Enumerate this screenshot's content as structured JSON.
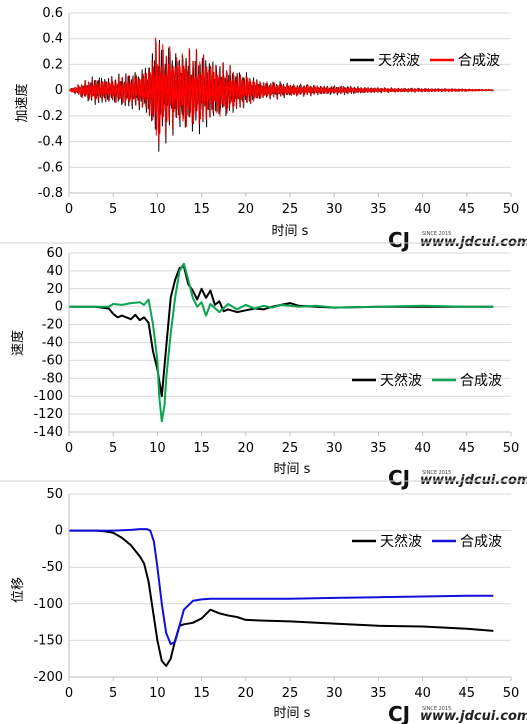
{
  "watermark": {
    "logo": "CJ",
    "since": "SINCE 2015",
    "url": "www.jdcui.com"
  },
  "chart_data": [
    {
      "type": "line",
      "xlabel": "时间 s",
      "ylabel": "加速度",
      "xlim": [
        0,
        50
      ],
      "ylim": [
        -0.8,
        0.6
      ],
      "xticks": [
        0,
        5,
        10,
        15,
        20,
        25,
        30,
        35,
        40,
        45,
        50
      ],
      "yticks": [
        -0.8,
        -0.6,
        -0.4,
        -0.2,
        0,
        0.2,
        0.4,
        0.6
      ],
      "legend_position": "top-right",
      "series": [
        {
          "name": "天然波",
          "color": "#000000",
          "x": [
            0,
            2,
            3,
            5,
            7,
            8,
            9,
            9.5,
            10,
            10.3,
            10.6,
            11,
            12,
            13,
            14,
            15,
            16,
            17,
            18,
            19,
            20,
            22,
            24,
            26,
            28,
            30,
            35,
            40,
            45,
            48
          ],
          "envelope": [
            0.01,
            0.08,
            0.12,
            0.12,
            0.15,
            0.17,
            0.25,
            0.35,
            0.52,
            0.48,
            0.36,
            0.4,
            0.35,
            0.38,
            0.33,
            0.33,
            0.28,
            0.25,
            0.22,
            0.16,
            0.15,
            0.07,
            0.07,
            0.05,
            0.04,
            0.04,
            0.02,
            0.015,
            0.01,
            0.005
          ]
        },
        {
          "name": "合成波",
          "color": "#ff0000",
          "x": [
            0,
            2,
            3,
            5,
            7,
            8,
            9,
            9.5,
            10,
            10.3,
            10.6,
            11,
            12,
            13,
            14,
            15,
            16,
            17,
            18,
            19,
            20,
            22,
            24,
            26,
            28,
            30,
            35,
            40,
            45,
            48
          ],
          "envelope": [
            0.01,
            0.08,
            0.1,
            0.1,
            0.13,
            0.15,
            0.22,
            0.32,
            0.5,
            0.45,
            0.35,
            0.38,
            0.33,
            0.36,
            0.31,
            0.3,
            0.26,
            0.24,
            0.2,
            0.15,
            0.14,
            0.07,
            0.06,
            0.05,
            0.04,
            0.03,
            0.02,
            0.015,
            0.01,
            0.005
          ]
        }
      ]
    },
    {
      "type": "line",
      "xlabel": "时间 s",
      "ylabel": "速度",
      "xlim": [
        0,
        50
      ],
      "ylim": [
        -140,
        60
      ],
      "xticks": [
        0,
        5,
        10,
        15,
        20,
        25,
        30,
        35,
        40,
        45,
        50
      ],
      "yticks": [
        -140,
        -120,
        -100,
        -80,
        -60,
        -40,
        -20,
        0,
        20,
        40,
        60
      ],
      "legend_position": "bottom-right",
      "series": [
        {
          "name": "天然波",
          "color": "#000000",
          "x": [
            0,
            3,
            4.5,
            5,
            5.5,
            6,
            7,
            7.5,
            8,
            8.5,
            9,
            9.5,
            10,
            10.5,
            11,
            11.5,
            12,
            12.5,
            13,
            13.5,
            14,
            14.5,
            15,
            15.5,
            16,
            16.5,
            17,
            17.5,
            18,
            19,
            20,
            21,
            22,
            23,
            24,
            25,
            26,
            28,
            30,
            35,
            40,
            45,
            48
          ],
          "y": [
            0,
            0,
            -2,
            -8,
            -12,
            -10,
            -14,
            -9,
            -15,
            -12,
            -18,
            -50,
            -70,
            -100,
            -45,
            10,
            30,
            43,
            45,
            25,
            18,
            8,
            20,
            10,
            18,
            2,
            6,
            -5,
            -3,
            -6,
            -4,
            -2,
            -3,
            0,
            2,
            4,
            1,
            0,
            -1,
            0,
            0,
            0,
            0
          ]
        },
        {
          "name": "合成波",
          "color": "#0aa34f",
          "x": [
            0,
            3,
            4.5,
            5,
            6,
            7,
            8,
            8.5,
            9,
            9.5,
            10,
            10.2,
            10.5,
            10.8,
            11,
            11.5,
            12,
            12.5,
            13,
            13.5,
            14,
            14.5,
            15,
            15.5,
            16,
            17,
            18,
            19,
            20,
            21,
            22,
            23,
            24,
            25,
            26,
            28,
            30,
            35,
            40,
            45,
            48
          ],
          "y": [
            0,
            0,
            0,
            3,
            2,
            4,
            5,
            2,
            8,
            -20,
            -60,
            -100,
            -128,
            -110,
            -80,
            -30,
            10,
            40,
            48,
            30,
            10,
            0,
            5,
            -10,
            3,
            -6,
            3,
            -3,
            2,
            -2,
            1,
            -1,
            2,
            1,
            0,
            1,
            -1,
            0,
            1,
            0,
            0
          ]
        }
      ]
    },
    {
      "type": "line",
      "xlabel": "时间 s",
      "ylabel": "位移",
      "xlim": [
        0,
        50
      ],
      "ylim": [
        -200,
        50
      ],
      "xticks": [
        0,
        5,
        10,
        15,
        20,
        25,
        30,
        35,
        40,
        45,
        50
      ],
      "yticks": [
        -200,
        -150,
        -100,
        -50,
        0,
        50
      ],
      "legend_position": "top-right",
      "series": [
        {
          "name": "天然波",
          "color": "#000000",
          "x": [
            0,
            3,
            4,
            5,
            6,
            7,
            8,
            8.5,
            9,
            9.5,
            10,
            10.5,
            11,
            11.5,
            12,
            12.5,
            13,
            14,
            15,
            16,
            17,
            18,
            19,
            20,
            22,
            25,
            30,
            35,
            40,
            45,
            48
          ],
          "y": [
            0,
            0,
            -1,
            -3,
            -10,
            -20,
            -35,
            -45,
            -70,
            -110,
            -150,
            -178,
            -185,
            -175,
            -150,
            -130,
            -128,
            -126,
            -120,
            -108,
            -113,
            -116,
            -118,
            -122,
            -123,
            -124,
            -127,
            -130,
            -131,
            -134,
            -137
          ]
        },
        {
          "name": "合成波",
          "color": "#1010d8",
          "x": [
            0,
            3,
            5,
            7,
            8,
            8.8,
            9.2,
            9.6,
            10,
            10.5,
            11,
            11.5,
            12,
            12.5,
            13,
            14,
            15,
            16,
            18,
            20,
            25,
            30,
            35,
            40,
            45,
            48
          ],
          "y": [
            0,
            0,
            0,
            1,
            2,
            2,
            0,
            -15,
            -50,
            -100,
            -140,
            -155,
            -152,
            -130,
            -108,
            -96,
            -94,
            -93,
            -93,
            -93,
            -93,
            -92,
            -91,
            -90,
            -89,
            -89
          ]
        }
      ]
    }
  ]
}
